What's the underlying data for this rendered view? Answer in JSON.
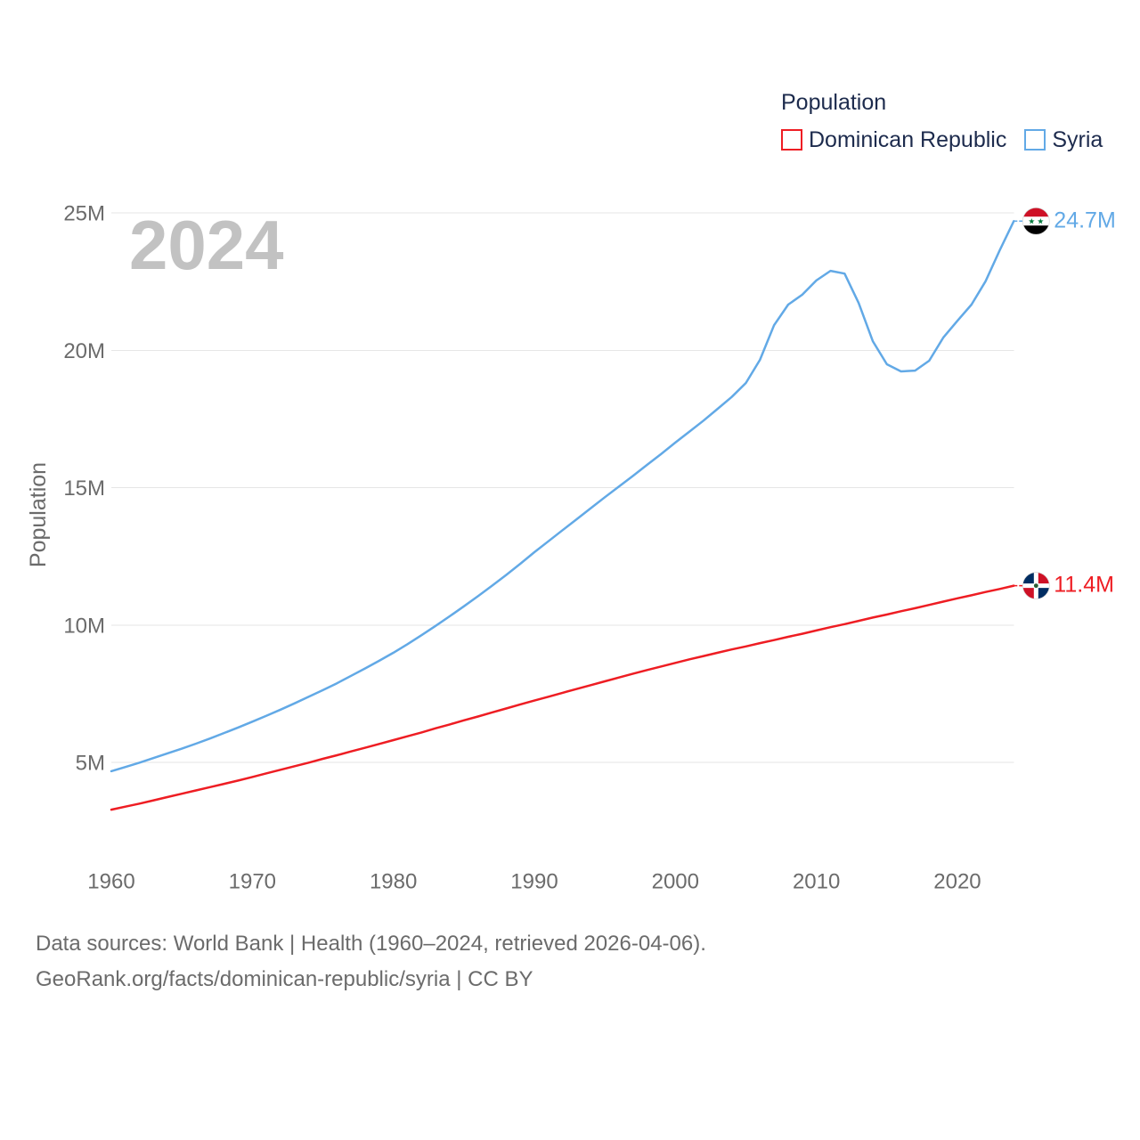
{
  "chart_data": {
    "type": "line",
    "title": "",
    "xlabel": "",
    "ylabel": "Population",
    "legend_title": "Population",
    "legend_position": "top-right",
    "year_label": "2024",
    "grid": true,
    "xlim": [
      1960,
      2024
    ],
    "ylim": [
      0,
      25
    ],
    "x_ticks": [
      1960,
      1970,
      1980,
      1990,
      2000,
      2010,
      2020
    ],
    "y_ticks": [
      {
        "value": 5,
        "label": "5M"
      },
      {
        "value": 10,
        "label": "10M"
      },
      {
        "value": 15,
        "label": "15M"
      },
      {
        "value": 20,
        "label": "20M"
      },
      {
        "value": 25,
        "label": "25M"
      }
    ],
    "x": [
      1960,
      1961,
      1962,
      1963,
      1964,
      1965,
      1966,
      1967,
      1968,
      1969,
      1970,
      1971,
      1972,
      1973,
      1974,
      1975,
      1976,
      1977,
      1978,
      1979,
      1980,
      1981,
      1982,
      1983,
      1984,
      1985,
      1986,
      1987,
      1988,
      1989,
      1990,
      1991,
      1992,
      1993,
      1994,
      1995,
      1996,
      1997,
      1998,
      1999,
      2000,
      2001,
      2002,
      2003,
      2004,
      2005,
      2006,
      2007,
      2008,
      2009,
      2010,
      2011,
      2012,
      2013,
      2014,
      2015,
      2016,
      2017,
      2018,
      2019,
      2020,
      2021,
      2022,
      2023,
      2024
    ],
    "series": [
      {
        "name": "Dominican Republic",
        "color": "#ee1d23",
        "flag_icon": "dominican-republic-flag-icon",
        "end_label": "11.4M",
        "values": [
          3.28,
          3.39,
          3.5,
          3.62,
          3.74,
          3.86,
          3.98,
          4.1,
          4.22,
          4.34,
          4.47,
          4.6,
          4.73,
          4.86,
          4.99,
          5.13,
          5.26,
          5.4,
          5.53,
          5.67,
          5.81,
          5.95,
          6.09,
          6.24,
          6.38,
          6.53,
          6.67,
          6.82,
          6.96,
          7.11,
          7.25,
          7.39,
          7.53,
          7.67,
          7.81,
          7.95,
          8.09,
          8.23,
          8.36,
          8.49,
          8.62,
          8.75,
          8.87,
          8.99,
          9.11,
          9.22,
          9.34,
          9.45,
          9.57,
          9.68,
          9.8,
          9.92,
          10.03,
          10.15,
          10.27,
          10.38,
          10.5,
          10.61,
          10.73,
          10.85,
          10.97,
          11.08,
          11.2,
          11.31,
          11.43
        ]
      },
      {
        "name": "Syria",
        "color": "#62a9e6",
        "flag_icon": "syria-flag-icon",
        "end_label": "24.7M",
        "values": [
          4.68,
          4.83,
          4.99,
          5.16,
          5.33,
          5.5,
          5.68,
          5.87,
          6.07,
          6.27,
          6.48,
          6.7,
          6.92,
          7.15,
          7.39,
          7.63,
          7.88,
          8.15,
          8.42,
          8.7,
          8.99,
          9.3,
          9.63,
          9.97,
          10.32,
          10.68,
          11.05,
          11.43,
          11.82,
          12.23,
          12.65,
          13.05,
          13.45,
          13.85,
          14.25,
          14.65,
          15.04,
          15.43,
          15.83,
          16.23,
          16.64,
          17.04,
          17.44,
          17.87,
          18.3,
          18.81,
          19.65,
          20.91,
          21.66,
          22.02,
          22.54,
          22.89,
          22.79,
          21.72,
          20.33,
          19.49,
          19.23,
          19.26,
          19.62,
          20.46,
          21.07,
          21.66,
          22.51,
          23.64,
          24.7
        ]
      }
    ]
  },
  "footer": {
    "source": "Data sources: World Bank | Health (1960–2024, retrieved 2026-04-06).",
    "credit": "GeoRank.org/facts/dominican-republic/syria | CC BY"
  }
}
